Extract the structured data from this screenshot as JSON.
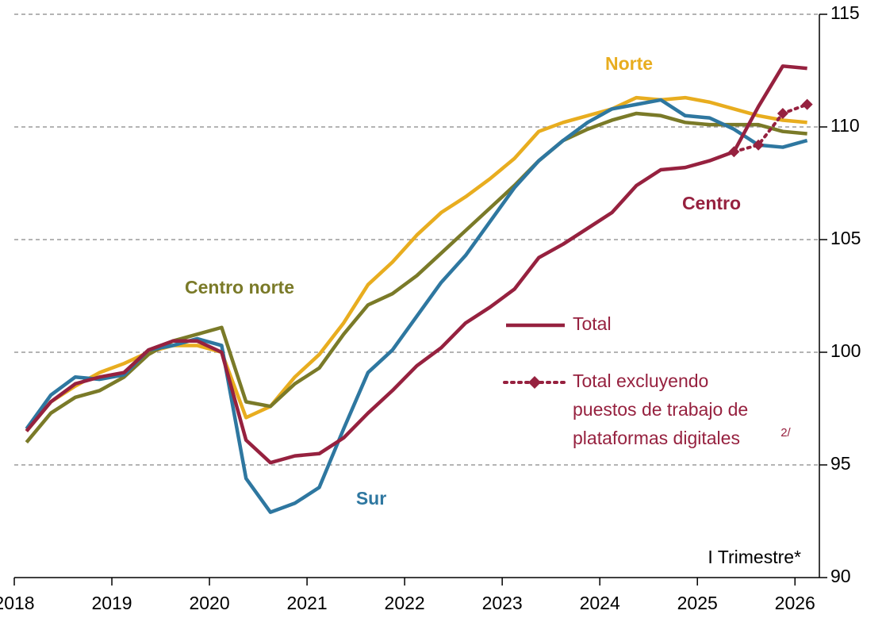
{
  "chart_data": {
    "type": "line",
    "x": [
      2018.125,
      2018.375,
      2018.625,
      2018.875,
      2019.125,
      2019.375,
      2019.625,
      2019.875,
      2020.125,
      2020.375,
      2020.625,
      2020.875,
      2021.125,
      2021.375,
      2021.625,
      2021.875,
      2022.125,
      2022.375,
      2022.625,
      2022.875,
      2023.125,
      2023.375,
      2023.625,
      2023.875,
      2024.125,
      2024.375,
      2024.625,
      2024.875,
      2025.125,
      2025.375,
      2025.625,
      2025.875,
      2026.125
    ],
    "series": [
      {
        "name": "Norte",
        "color": "#e8ad1f",
        "style": "solid",
        "values": [
          96.5,
          97.8,
          98.5,
          99.1,
          99.5,
          100.0,
          100.3,
          100.3,
          100.0,
          97.1,
          97.6,
          98.9,
          99.9,
          101.3,
          103.0,
          104.0,
          105.2,
          106.2,
          106.9,
          107.7,
          108.6,
          109.8,
          110.2,
          110.5,
          110.8,
          111.3,
          111.2,
          111.3,
          111.1,
          110.8,
          110.5,
          110.3,
          110.2
        ]
      },
      {
        "name": "Centro norte",
        "color": "#7a7a28",
        "style": "solid",
        "values": [
          96.0,
          97.3,
          98.0,
          98.3,
          98.9,
          99.9,
          100.5,
          100.8,
          101.1,
          97.8,
          97.6,
          98.6,
          99.3,
          100.8,
          102.1,
          102.6,
          103.4,
          104.4,
          105.4,
          106.4,
          107.4,
          108.5,
          109.4,
          109.9,
          110.3,
          110.6,
          110.5,
          110.2,
          110.1,
          110.1,
          110.1,
          109.8,
          109.7
        ]
      },
      {
        "name": "Sur",
        "color": "#2e77a0",
        "style": "solid",
        "values": [
          96.6,
          98.1,
          98.9,
          98.8,
          99.0,
          100.1,
          100.3,
          100.6,
          100.3,
          94.4,
          92.9,
          93.3,
          94.0,
          96.6,
          99.1,
          100.1,
          101.6,
          103.1,
          104.3,
          105.8,
          107.3,
          108.5,
          109.4,
          110.2,
          110.8,
          111.0,
          111.2,
          110.5,
          110.4,
          109.9,
          109.2,
          109.1,
          109.4
        ]
      },
      {
        "name": "Total",
        "label": "Centro",
        "color": "#96213f",
        "style": "solid",
        "values": [
          96.5,
          97.8,
          98.6,
          98.9,
          99.1,
          100.1,
          100.5,
          100.5,
          100.0,
          96.1,
          95.1,
          95.4,
          95.5,
          96.2,
          97.3,
          98.3,
          99.4,
          100.2,
          101.3,
          102.0,
          102.8,
          104.2,
          104.8,
          105.5,
          106.2,
          107.4,
          108.1,
          108.2,
          108.5,
          108.9,
          110.9,
          112.7,
          112.6
        ]
      },
      {
        "name": "Total excluyendo puestos de trabajo de plataformas digitales",
        "name_note": "2/",
        "color": "#96213f",
        "style": "dotted",
        "values": [
          null,
          null,
          null,
          null,
          null,
          null,
          null,
          null,
          null,
          null,
          null,
          null,
          null,
          null,
          null,
          null,
          null,
          null,
          null,
          null,
          null,
          null,
          null,
          null,
          null,
          null,
          null,
          null,
          null,
          108.9,
          109.2,
          110.6,
          111.0
        ]
      }
    ],
    "xlim": [
      2018,
      2026.25
    ],
    "xticks": [
      2018,
      2019,
      2020,
      2021,
      2022,
      2023,
      2024,
      2025,
      2026
    ],
    "ylim": [
      90,
      115
    ],
    "yticks": [
      90,
      95,
      100,
      105,
      110,
      115
    ],
    "y_axis_side": "right",
    "grid": true,
    "annotations": [
      "I Trimestre*"
    ]
  }
}
